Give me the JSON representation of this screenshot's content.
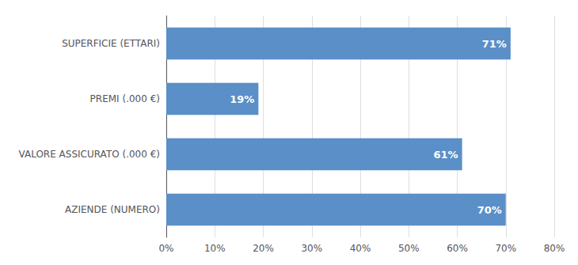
{
  "chart_data": {
    "type": "bar",
    "orientation": "horizontal",
    "categories": [
      "SUPERFICIE (ETTARI)",
      "PREMI (.000 €)",
      "VALORE ASSICURATO (.000 €)",
      "AZIENDE (NUMERO)"
    ],
    "values": [
      71,
      19,
      61,
      70
    ],
    "value_labels": [
      "71%",
      "19%",
      "61%",
      "70%"
    ],
    "data_labels": true,
    "color": "#5b8fc7",
    "xlim": [
      0,
      80
    ],
    "xticks": [
      {
        "value": 0,
        "label": "0%"
      },
      {
        "value": 10,
        "label": "10%"
      },
      {
        "value": 20,
        "label": "20%"
      },
      {
        "value": 30,
        "label": "30%"
      },
      {
        "value": 40,
        "label": "40%"
      },
      {
        "value": 50,
        "label": "50%"
      },
      {
        "value": 60,
        "label": "60%"
      },
      {
        "value": 70,
        "label": "70%"
      },
      {
        "value": 80,
        "label": "80%"
      }
    ],
    "grid": true
  }
}
